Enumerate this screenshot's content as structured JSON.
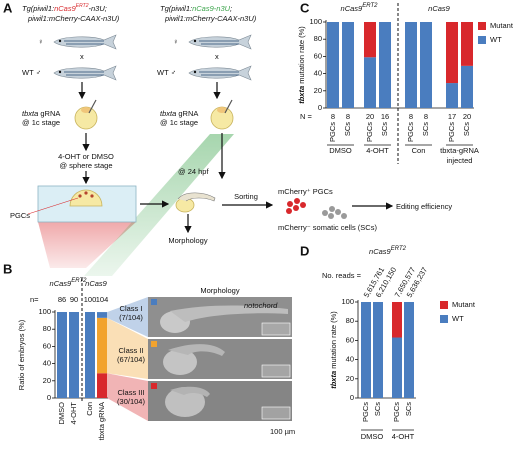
{
  "figure": {
    "panel_labels": [
      "A",
      "B",
      "C",
      "D"
    ],
    "a": {
      "left_title": {
        "prefix": "Tg(piwil1:",
        "gene": "nCas9",
        "sup": "ERT2",
        "suffix": "-n3U;",
        "line2": "piwil1:mCherry-CAAX-n3U)"
      },
      "right_title": {
        "prefix": "Tg(piwil1:",
        "gene": "nCas9-n3U",
        "suffix": ";",
        "line2": "piwil1:mCherry-CAAX-n3U)"
      },
      "female": "♀",
      "male": "WT ♂",
      "cross": "x",
      "injection_gene": "tbxta",
      "injection": "gRNA",
      "injection_stage": "@ 1c stage",
      "treatment": "4-OHT or DMSO",
      "treatment_stage": "@ sphere stage",
      "pgcs": "PGCs",
      "timepoint": "@ 24 hpf",
      "morphology": "Morphology",
      "sorting": "Sorting",
      "pgc_sort": "mCherry⁺ PGCs",
      "sc_sort": "mCherry⁻ somatic cells (SCs)",
      "editing": "Editing efficiency"
    },
    "b": {
      "morphology": "Morphology",
      "notochord": "notochord",
      "scale": "100 µm"
    }
  },
  "chart_data": [
    {
      "type": "stacked_bar",
      "ylabel": "Ratio of embryos (%)",
      "ylim": [
        0,
        100
      ],
      "yticks": [
        0,
        20,
        40,
        60,
        80,
        100
      ],
      "categories": [
        "DMSO",
        "4-OHT",
        "Con",
        "tbxta gRNA"
      ],
      "category_colors": [
        "#111111",
        "#d8282c",
        "#111111",
        "#111111"
      ],
      "n_label": "n=",
      "n": [
        86,
        90,
        100,
        104
      ],
      "headers": [
        {
          "name": "nCas9",
          "sup": "ERT2",
          "color": "#d8282c"
        },
        {
          "name": "nCas9",
          "color": "#3aa34a"
        }
      ],
      "series": [
        {
          "name": "Class I",
          "fraction": "(7/104)",
          "color": "#4a7dbf",
          "values": [
            100,
            100,
            100,
            6.7
          ]
        },
        {
          "name": "Class II",
          "fraction": "(67/104)",
          "color": "#f2a32e",
          "values": [
            0,
            0,
            0,
            64.4
          ]
        },
        {
          "name": "Class III",
          "fraction": "(30/104)",
          "color": "#d8282c",
          "values": [
            0,
            0,
            0,
            28.8
          ]
        }
      ]
    },
    {
      "type": "stacked_bar",
      "ylabel_gene": "tbxta",
      "ylabel": "mutation rate (%)",
      "ylim": [
        0,
        100
      ],
      "yticks": [
        0,
        20,
        40,
        60,
        80,
        100
      ],
      "categories": [
        "PGCs",
        "SCs",
        "PGCs",
        "SCs",
        "PGCs",
        "SCs",
        "PGCs",
        "SCs"
      ],
      "n_label": "N =",
      "n": [
        8,
        8,
        20,
        16,
        8,
        8,
        17,
        20
      ],
      "headers": [
        {
          "name": "nCas9",
          "sup": "ERT2",
          "color": "#d8282c"
        },
        {
          "name": "nCas9",
          "color": "#3aa34a"
        }
      ],
      "groups": [
        {
          "name": "DMSO"
        },
        {
          "name": "4-OHT",
          "color": "#d8282c"
        },
        {
          "name": "Con"
        },
        {
          "name": "tbxta-gRNA",
          "subname": "injected"
        }
      ],
      "legend": true,
      "series": [
        {
          "name": "Mutant",
          "color": "#d8282c",
          "values": [
            0,
            0,
            41,
            0,
            0,
            0,
            71,
            51
          ]
        },
        {
          "name": "WT",
          "color": "#4a7dbf",
          "values": [
            100,
            100,
            59,
            100,
            100,
            100,
            29,
            49
          ]
        }
      ]
    },
    {
      "type": "stacked_bar",
      "ylabel_gene": "tbxta",
      "ylabel": "mutation rate (%)",
      "ylim": [
        0,
        100
      ],
      "yticks": [
        0,
        20,
        40,
        60,
        80,
        100
      ],
      "categories": [
        "PGCs",
        "SCs",
        "PGCs",
        "SCs"
      ],
      "headers": [
        {
          "name": "nCas9",
          "sup": "ERT2",
          "color": "#d8282c"
        }
      ],
      "reads_label": "No. reads =",
      "reads": [
        "5,615,761",
        "6,210,150",
        "7,650,577",
        "5,636,237"
      ],
      "groups": [
        {
          "name": "DMSO"
        },
        {
          "name": "4-OHT",
          "color": "#d8282c"
        }
      ],
      "legend": true,
      "series": [
        {
          "name": "Mutant",
          "color": "#d8282c",
          "values": [
            0,
            0,
            37,
            0
          ]
        },
        {
          "name": "WT",
          "color": "#4a7dbf",
          "values": [
            100,
            100,
            63,
            100
          ]
        }
      ]
    }
  ]
}
